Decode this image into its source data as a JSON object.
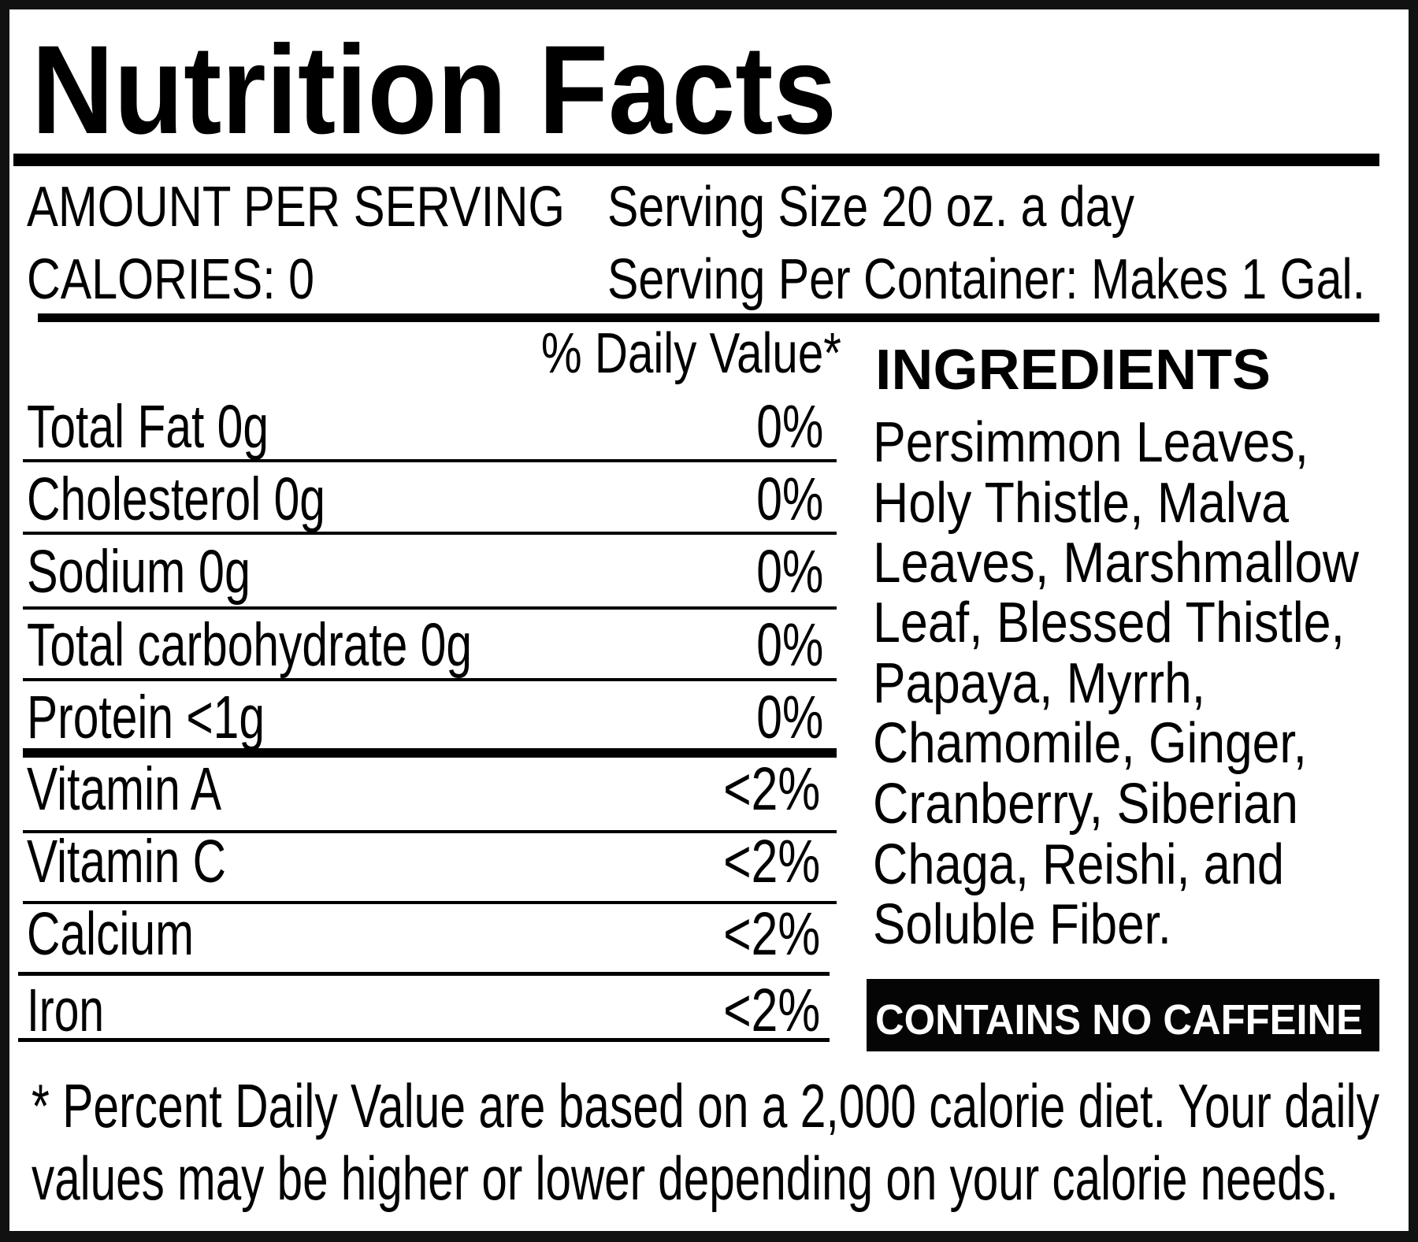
{
  "title": "Nutrition Facts",
  "header": {
    "amount_per_serving": "AMOUNT PER SERVING",
    "calories": "CALORIES: 0",
    "serving_size": "Serving Size 20 oz. a day",
    "servings_per_container": "Serving Per Container: Makes 1 Gal."
  },
  "daily_value_header": "% Daily Value*",
  "nutrients": [
    {
      "label": "Total Fat 0g",
      "dv": "0%"
    },
    {
      "label": "Cholesterol 0g",
      "dv": "0%"
    },
    {
      "label": "Sodium 0g",
      "dv": "0%"
    },
    {
      "label": "Total carbohydrate 0g",
      "dv": "0%"
    },
    {
      "label": "Protein <1g",
      "dv": "0%"
    },
    {
      "label": "Vitamin A",
      "dv": "<2%"
    },
    {
      "label": "Vitamin C",
      "dv": "<2%"
    },
    {
      "label": "Calcium",
      "dv": "<2%"
    },
    {
      "label": "Iron",
      "dv": "<2%"
    }
  ],
  "ingredients": {
    "heading": "INGREDIENTS",
    "lines": [
      "Persimmon Leaves,",
      "Holy Thistle, Malva",
      "Leaves, Marshmallow",
      "Leaf, Blessed Thistle,",
      "Papaya, Myrrh,",
      "Chamomile, Ginger,",
      "Cranberry, Siberian",
      "Chaga, Reishi, and",
      "Soluble Fiber."
    ]
  },
  "badge": {
    "label": "CONTAINS NO CAFFEINE",
    "background": "#050505",
    "text_color": "#ffffff"
  },
  "footnote": [
    "* Percent Daily Value are based on a 2,000 calorie diet. Your daily",
    "values may be higher or lower depending on your calorie needs."
  ]
}
